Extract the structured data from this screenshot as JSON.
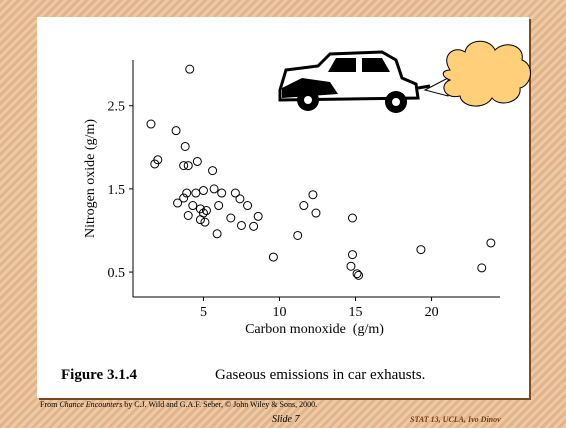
{
  "chart_data": {
    "type": "scatter",
    "xlabel": "Carbon monoxide  (g/m)",
    "ylabel": "Nitrogen oxide (g/m)",
    "x": [
      4.1,
      1.55,
      1.8,
      2.0,
      3.2,
      3.8,
      3.7,
      4.0,
      4.6,
      5.6,
      3.3,
      3.7,
      3.9,
      4.5,
      5.0,
      5.7,
      6.2,
      7.1,
      7.4,
      7.9,
      4.3,
      4.8,
      5.0,
      5.2,
      4.0,
      4.8,
      5.1,
      6.0,
      6.8,
      7.5,
      8.3,
      8.6,
      5.9,
      9.6,
      11.2,
      11.6,
      12.2,
      12.4,
      14.8,
      14.8,
      14.7,
      15.1,
      15.2,
      19.3,
      23.3,
      23.9
    ],
    "y": [
      2.94,
      2.28,
      1.8,
      1.85,
      2.2,
      2.01,
      1.78,
      1.78,
      1.83,
      1.72,
      1.33,
      1.39,
      1.45,
      1.45,
      1.48,
      1.5,
      1.45,
      1.45,
      1.38,
      1.3,
      1.3,
      1.26,
      1.21,
      1.24,
      1.18,
      1.13,
      1.1,
      1.3,
      1.15,
      1.06,
      1.05,
      1.17,
      0.96,
      0.68,
      0.94,
      1.3,
      1.43,
      1.21,
      1.15,
      0.71,
      0.57,
      0.48,
      0.46,
      0.77,
      0.55,
      0.85
    ],
    "xlim": [
      0.5,
      24.5
    ],
    "ylim": [
      0.2,
      3.05
    ],
    "xticks": [
      5,
      10,
      15,
      20
    ],
    "yticks": [
      0.5,
      1.5,
      2.5
    ]
  },
  "caption": {
    "label": "Figure 3.1.4",
    "text": "Gaseous emissions in car exhausts."
  },
  "footer": {
    "source_prefix": "From",
    "source_title": "Chance Encounters",
    "source_rest": "by C.J. Wild and G.A.F. Seber, © John Wiley & Sons, 2000.",
    "slide": "Slide 7",
    "course": "STAT 13, UCLA, Ivo Dinov"
  }
}
